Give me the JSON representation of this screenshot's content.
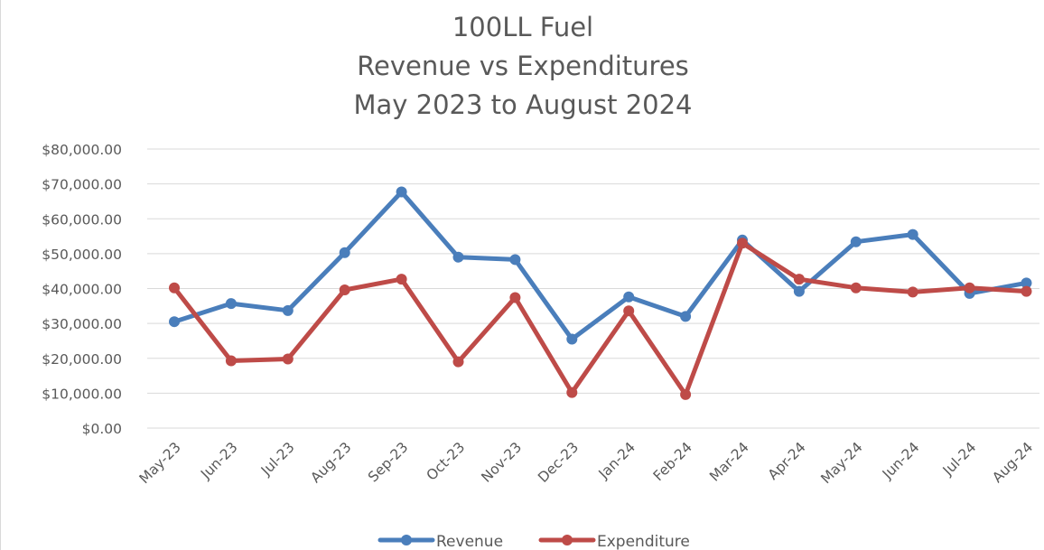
{
  "chart_data": {
    "type": "line",
    "title": [
      "100LL Fuel",
      "Revenue vs Expenditures",
      "May 2023 to August 2024"
    ],
    "categories": [
      "May-23",
      "Jun-23",
      "Jul-23",
      "Aug-23",
      "Sep-23",
      "Oct-23",
      "Nov-23",
      "Dec-23",
      "Jan-24",
      "Feb-24",
      "Mar-24",
      "Apr-24",
      "May-24",
      "Jun-24",
      "Jul-24",
      "Aug-24"
    ],
    "yticks": [
      "$0.00",
      "$10,000.00",
      "$20,000.00",
      "$30,000.00",
      "$40,000.00",
      "$50,000.00",
      "$60,000.00",
      "$70,000.00",
      "$80,000.00"
    ],
    "ylim": [
      0,
      80000
    ],
    "grid": true,
    "legend_position": "bottom",
    "series": [
      {
        "name": "Revenue",
        "color": "#4a7ebb",
        "values": [
          30500,
          35700,
          33700,
          50300,
          67700,
          49000,
          48300,
          25500,
          37600,
          32000,
          53900,
          39200,
          53400,
          55500,
          38600,
          41600
        ]
      },
      {
        "name": "Expenditure",
        "color": "#be4b48",
        "values": [
          40200,
          19300,
          19800,
          39600,
          42700,
          19000,
          37400,
          10200,
          33600,
          9600,
          53000,
          42700,
          40200,
          39000,
          40200,
          39200
        ]
      }
    ]
  }
}
